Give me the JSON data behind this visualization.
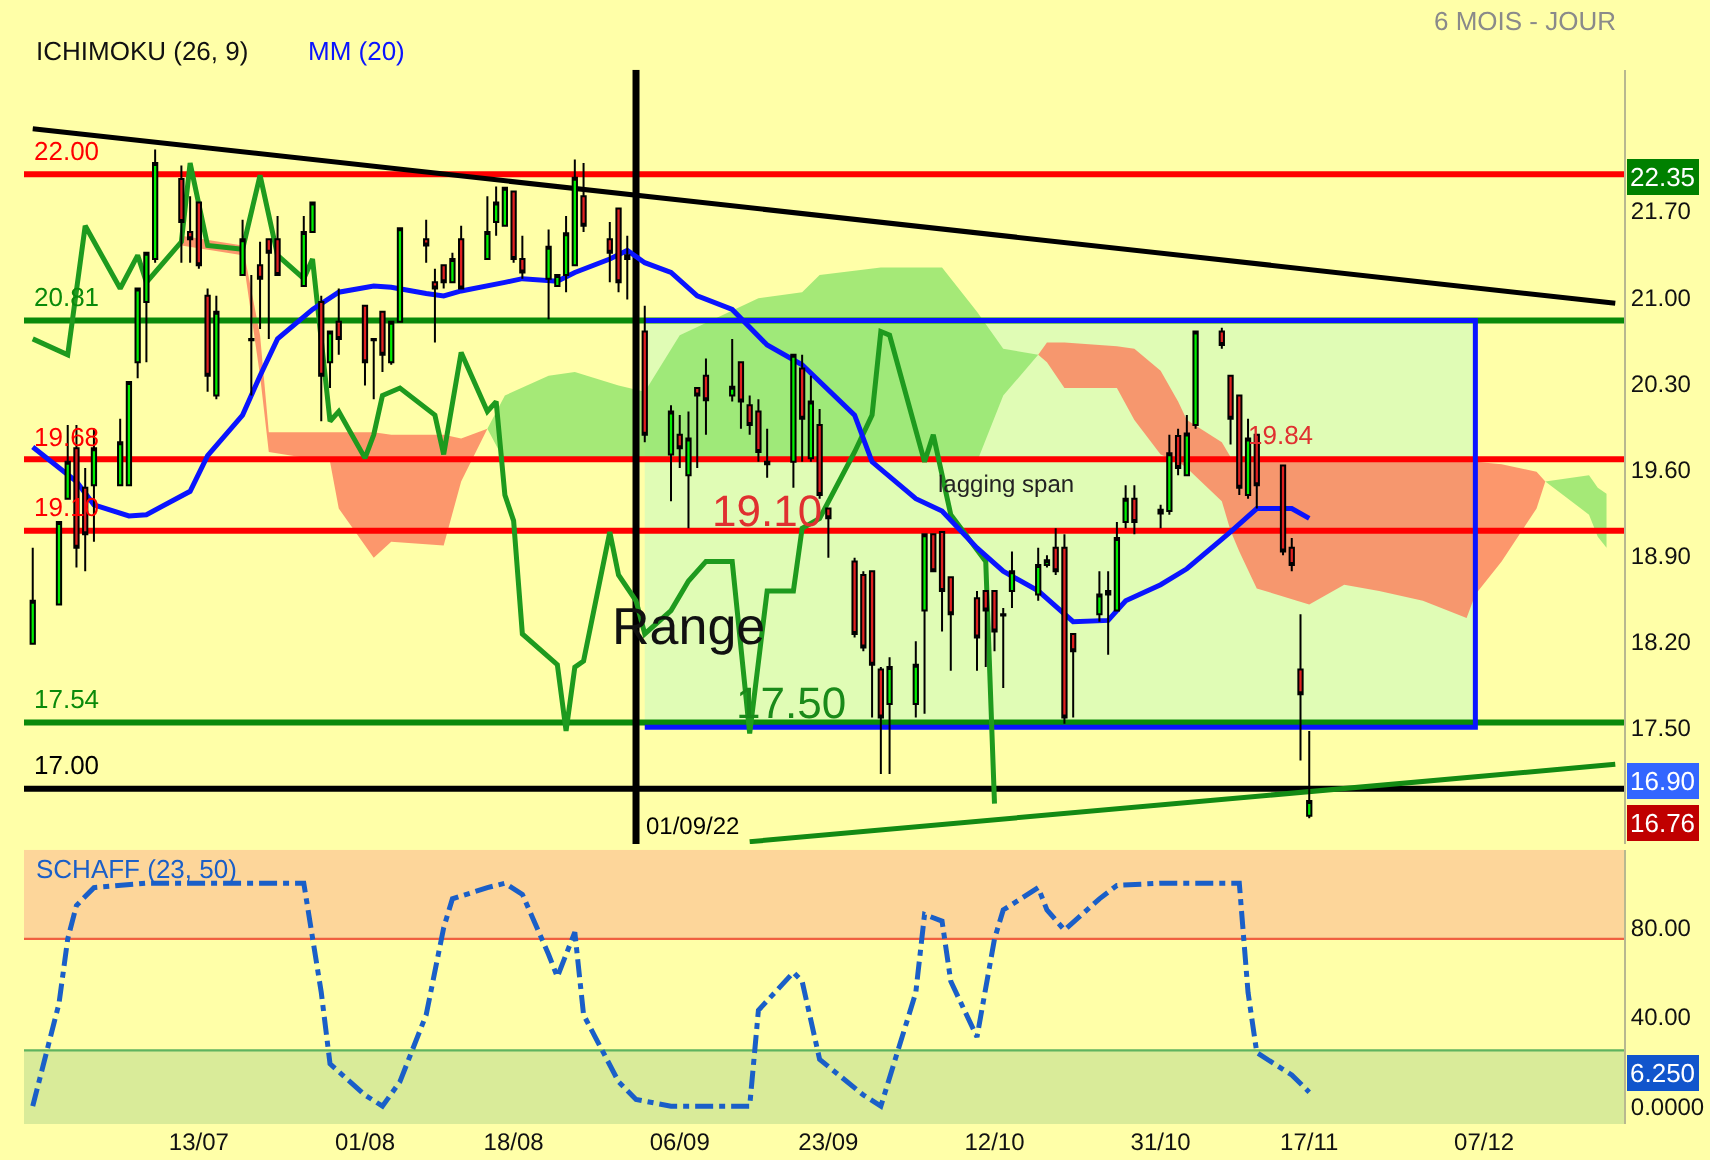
{
  "chart_data": [
    {
      "type": "candlestick",
      "x": [
        "--06-24",
        "--06-27",
        "--06-28",
        "--06-29",
        "--06-30",
        "--07-01",
        "--07-04",
        "--07-05",
        "--07-06",
        "--07-07",
        "--07-08",
        "--07-11",
        "--07-12",
        "--07-13",
        "--07-14",
        "--07-15",
        "--07-18",
        "--07-19",
        "--07-20",
        "--07-21",
        "--07-22",
        "--07-25",
        "--07-26",
        "--07-27",
        "--07-28",
        "--07-29",
        "--08-01",
        "--08-02",
        "--08-03",
        "--08-04",
        "--08-05",
        "--08-08",
        "--08-09",
        "--08-10",
        "--08-11",
        "--08-12",
        "--08-15",
        "--08-16",
        "--08-17",
        "--08-18",
        "--08-19",
        "--08-22",
        "--08-23",
        "--08-24",
        "--08-25",
        "--08-26",
        "--08-29",
        "--08-30",
        "--08-31",
        "--09-02",
        "--09-05",
        "--09-06",
        "--09-07",
        "--09-08",
        "--09-09",
        "--09-12",
        "--09-13",
        "--09-14",
        "--09-15",
        "--09-16",
        "--09-19",
        "--09-20",
        "--09-21",
        "--09-22",
        "--09-23",
        "--09-26",
        "--09-27",
        "--09-28",
        "--09-29",
        "--09-30",
        "--10-03",
        "--10-04",
        "--10-05",
        "--10-06",
        "--10-07",
        "--10-10",
        "--10-11",
        "--10-12",
        "--10-13",
        "--10-14",
        "--10-17",
        "--10-18",
        "--10-19",
        "--10-20",
        "--10-21",
        "--10-24",
        "--10-25",
        "--10-26",
        "--10-27",
        "--10-28",
        "--10-31",
        "--11-01",
        "--11-02",
        "--11-03",
        "--11-04",
        "--11-07",
        "--11-08",
        "--11-09",
        "--11-10",
        "--11-11",
        "--11-14",
        "--11-15",
        "--11-16",
        "--11-17"
      ],
      "ohlc": [
        [
          18.18,
          18.96,
          18.18,
          18.53
        ],
        [
          18.5,
          19.17,
          18.5,
          19.17
        ],
        [
          19.36,
          19.96,
          19.36,
          19.66
        ],
        [
          19.77,
          19.96,
          18.8,
          18.96
        ],
        [
          19.45,
          19.61,
          18.77,
          19.07
        ],
        [
          19.47,
          19.93,
          19.01,
          19.77
        ],
        [
          19.47,
          20.01,
          19.47,
          19.82
        ],
        [
          19.47,
          20.31,
          19.47,
          20.31
        ],
        [
          20.47,
          21.07,
          20.34,
          21.07
        ],
        [
          20.96,
          21.36,
          20.47,
          21.36
        ],
        [
          21.31,
          22.2,
          21.28,
          22.09
        ],
        [
          21.96,
          22.07,
          21.28,
          21.61
        ],
        [
          21.53,
          21.82,
          21.28,
          21.47
        ],
        [
          21.77,
          21.77,
          21.23,
          21.26
        ],
        [
          21.01,
          21.07,
          20.23,
          20.36
        ],
        [
          20.2,
          21.01,
          20.17,
          20.88
        ],
        [
          21.18,
          21.63,
          21.18,
          21.47
        ],
        [
          20.66,
          21.18,
          20.2,
          20.65
        ],
        [
          21.26,
          21.45,
          20.74,
          21.15
        ],
        [
          21.47,
          21.47,
          20.66,
          21.36
        ],
        [
          21.47,
          21.66,
          21.18,
          21.18
        ],
        [
          21.09,
          21.66,
          21.09,
          21.53
        ],
        [
          21.53,
          21.77,
          21.53,
          21.77
        ],
        [
          20.96,
          21.01,
          19.99,
          20.36
        ],
        [
          20.47,
          20.72,
          20.26,
          20.72
        ],
        [
          20.8,
          21.07,
          20.53,
          20.66
        ],
        [
          20.93,
          20.93,
          20.28,
          20.47
        ],
        [
          20.66,
          20.66,
          20.17,
          20.65
        ],
        [
          20.88,
          20.88,
          20.39,
          20.53
        ],
        [
          20.47,
          20.8,
          20.45,
          20.8
        ],
        [
          20.8,
          21.56,
          20.8,
          21.56
        ],
        [
          21.47,
          21.63,
          21.28,
          21.42
        ],
        [
          21.12,
          21.23,
          20.63,
          21.07
        ],
        [
          21.26,
          21.26,
          21.07,
          21.12
        ],
        [
          21.12,
          21.36,
          21.12,
          21.31
        ],
        [
          21.47,
          21.58,
          21.07,
          21.07
        ],
        [
          21.31,
          21.82,
          21.31,
          21.53
        ],
        [
          21.61,
          21.9,
          21.5,
          21.77
        ],
        [
          21.58,
          21.89,
          21.58,
          21.89
        ],
        [
          21.86,
          21.86,
          21.28,
          21.31
        ],
        [
          21.31,
          21.5,
          21.15,
          21.2
        ],
        [
          21.15,
          21.55,
          20.82,
          21.41
        ],
        [
          21.09,
          21.18,
          21.09,
          21.18
        ],
        [
          21.18,
          21.66,
          21.04,
          21.52
        ],
        [
          21.26,
          22.12,
          21.26,
          21.97
        ],
        [
          21.82,
          22.09,
          21.53,
          21.58
        ],
        [
          21.47,
          21.61,
          21.12,
          21.36
        ],
        [
          21.72,
          21.72,
          21.04,
          21.12
        ],
        [
          21.34,
          21.5,
          20.98,
          21.31
        ],
        [
          20.72,
          20.93,
          19.82,
          19.88
        ],
        [
          19.72,
          20.12,
          19.34,
          20.07
        ],
        [
          19.88,
          20.04,
          19.61,
          19.77
        ],
        [
          19.55,
          20.07,
          19.12,
          19.85
        ],
        [
          20.26,
          20.26,
          19.61,
          20.2
        ],
        [
          20.36,
          20.5,
          19.88,
          20.16
        ],
        [
          20.2,
          20.66,
          20.15,
          20.27
        ],
        [
          20.47,
          20.47,
          19.93,
          20.15
        ],
        [
          20.12,
          20.2,
          19.88,
          19.96
        ],
        [
          20.07,
          20.17,
          19.66,
          19.74
        ],
        [
          19.66,
          19.93,
          19.53,
          19.64
        ],
        [
          19.66,
          20.53,
          19.45,
          20.53
        ],
        [
          20.42,
          20.53,
          19.66,
          20.01
        ],
        [
          19.69,
          20.36,
          19.66,
          20.15
        ],
        [
          19.96,
          20.09,
          19.36,
          19.39
        ],
        [
          19.28,
          19.28,
          18.88,
          19.2
        ],
        [
          18.85,
          18.88,
          18.23,
          18.26
        ],
        [
          18.74,
          18.77,
          18.12,
          18.15
        ],
        [
          18.77,
          18.77,
          17.58,
          18.01
        ],
        [
          17.97,
          17.99,
          17.12,
          17.58
        ],
        [
          17.69,
          18.07,
          17.12,
          17.99
        ],
        [
          17.69,
          18.2,
          17.58,
          18.01
        ],
        [
          18.45,
          19.07,
          17.61,
          19.07
        ],
        [
          19.07,
          19.07,
          18.77,
          18.77
        ],
        [
          19.09,
          19.09,
          18.28,
          18.61
        ],
        [
          18.72,
          18.72,
          17.96,
          18.42
        ],
        [
          18.55,
          18.61,
          17.96,
          18.23
        ],
        [
          18.61,
          18.61,
          17.99,
          18.45
        ],
        [
          18.61,
          18.61,
          18.12,
          18.28
        ],
        [
          18.42,
          18.47,
          17.82,
          18.41
        ],
        [
          18.61,
          18.93,
          18.47,
          18.77
        ],
        [
          18.58,
          18.96,
          18.53,
          18.82
        ],
        [
          18.82,
          18.9,
          18.8,
          18.86
        ],
        [
          18.96,
          19.12,
          18.74,
          18.77
        ],
        [
          18.96,
          19.07,
          17.53,
          17.58
        ],
        [
          18.26,
          18.26,
          17.58,
          18.12
        ],
        [
          18.42,
          18.77,
          18.36,
          18.58
        ],
        [
          18.61,
          18.77,
          18.09,
          18.58
        ],
        [
          18.45,
          19.17,
          18.45,
          19.04
        ],
        [
          19.17,
          19.47,
          19.12,
          19.36
        ],
        [
          19.36,
          19.47,
          19.07,
          19.17
        ],
        [
          19.27,
          19.31,
          19.12,
          19.24
        ],
        [
          19.26,
          19.88,
          19.23,
          19.73
        ],
        [
          19.87,
          19.93,
          19.55,
          19.61
        ],
        [
          19.55,
          20.04,
          19.55,
          19.89
        ],
        [
          19.96,
          20.72,
          19.93,
          20.72
        ],
        [
          20.72,
          20.75,
          20.58,
          20.61
        ],
        [
          20.36,
          20.36,
          19.8,
          20.01
        ],
        [
          20.2,
          20.2,
          19.39,
          19.45
        ],
        [
          19.39,
          20.01,
          19.36,
          19.85
        ],
        [
          19.88,
          19.88,
          19.28,
          19.47
        ],
        [
          19.63,
          19.63,
          18.9,
          18.93
        ],
        [
          18.96,
          19.04,
          18.77,
          18.82
        ],
        [
          17.97,
          18.42,
          17.23,
          17.77
        ],
        [
          16.78,
          17.47,
          16.76,
          16.9
        ]
      ],
      "series": [
        {
          "type": "line",
          "color": "#d8fbb8",
          "x": [
            "--09-02",
            "--12-06"
          ],
          "values": [
            null,
            null
          ],
          "lower": [
            17.5,
            17.5
          ],
          "upper": [
            20.81,
            20.81
          ]
        },
        {
          "type": "line",
          "color": "#0a14ff",
          "x": [
            "--09-02",
            "--12-06",
            "--12-06",
            "--09-02"
          ],
          "values": [
            20.81,
            20.81,
            17.5,
            17.5
          ]
        },
        {
          "type": "line",
          "color": "#fb7d5c",
          "x": [
            "--07-11",
            "--07-18",
            "--07-20",
            "--07-21",
            "--07-28",
            "--07-29",
            "--08-02",
            "--08-04",
            "--08-10",
            "--08-12",
            "--08-15"
          ],
          "values": [
            null,
            null,
            null,
            null,
            null,
            null,
            null,
            null,
            null,
            null,
            null
          ],
          "upper": [
            21.5,
            21.42,
            20.69,
            19.9,
            19.9,
            19.9,
            19.9,
            19.88,
            19.88,
            19.85,
            19.93
          ],
          "lower": [
            21.42,
            21.34,
            20.36,
            19.74,
            19.66,
            19.28,
            18.88,
            19.01,
            18.98,
            19.5,
            19.93
          ]
        },
        {
          "type": "line",
          "color": "#8ee36a",
          "x": [
            "--08-15",
            "--08-17",
            "--08-22",
            "--08-25",
            "--08-30",
            "--09-02",
            "--09-06",
            "--09-15",
            "--09-20",
            "--09-22",
            "--09-29",
            "--10-06",
            "--10-10",
            "--10-13",
            "--10-17"
          ],
          "values": [
            null,
            null,
            null,
            null,
            null,
            null,
            null,
            null,
            null,
            null,
            null,
            null,
            null,
            null,
            null
          ],
          "upper": [
            19.93,
            20.2,
            20.36,
            20.39,
            20.28,
            20.23,
            20.69,
            20.99,
            21.04,
            21.18,
            21.24,
            21.24,
            20.88,
            20.58,
            20.53
          ],
          "lower": [
            19.93,
            19.66,
            19.66,
            19.66,
            19.66,
            19.66,
            19.66,
            19.66,
            19.66,
            19.66,
            19.66,
            19.66,
            19.66,
            20.2,
            20.53
          ]
        },
        {
          "type": "line",
          "color": "#fb7d5c",
          "x": [
            "--10-17",
            "--10-18",
            "--10-20",
            "--10-26",
            "--10-28",
            "--10-31",
            "--11-02",
            "--11-03",
            "--11-07",
            "--11-08",
            "--11-09",
            "--11-11",
            "--11-17",
            "--11-21",
            "--11-25",
            "--11-30",
            "--12-05",
            "--12-06",
            "--12-09",
            "--12-13",
            "--12-14"
          ],
          "values": [
            null,
            null,
            null,
            null,
            null,
            null,
            null,
            null,
            null,
            null,
            null,
            null,
            null,
            null,
            null,
            null,
            null,
            null,
            null,
            null,
            null
          ],
          "upper": [
            20.53,
            20.63,
            20.63,
            20.6,
            20.58,
            20.4,
            20.15,
            20.0,
            19.82,
            19.7,
            19.66,
            19.66,
            19.66,
            19.66,
            19.66,
            19.66,
            19.66,
            19.66,
            19.64,
            19.58,
            19.5
          ],
          "lower": [
            20.53,
            20.47,
            20.26,
            20.26,
            20.0,
            19.72,
            19.66,
            19.61,
            19.34,
            19.1,
            18.93,
            18.63,
            18.5,
            18.66,
            18.61,
            18.53,
            18.39,
            18.58,
            18.85,
            19.28,
            19.5
          ]
        },
        {
          "type": "line",
          "color": "#8ee36a",
          "x": [
            "--12-14",
            "--12-19",
            "--12-20",
            "--12-21"
          ],
          "values": [
            null,
            null,
            null,
            null
          ],
          "upper": [
            19.5,
            19.55,
            19.45,
            19.4
          ],
          "lower": [
            19.5,
            19.23,
            19.05,
            18.96
          ]
        },
        {
          "type": "line",
          "color": "#1e9a1e",
          "x": [
            "--06-24",
            "--06-28",
            "--06-30",
            "--07-04",
            "--07-06",
            "--07-07",
            "--07-11",
            "--07-12",
            "--07-14",
            "--07-18",
            "--07-20",
            "--07-22",
            "--07-25",
            "--07-26",
            "--07-28",
            "--07-29",
            "--08-01",
            "--08-02",
            "--08-03",
            "--08-05",
            "--08-09",
            "--08-10",
            "--08-12",
            "--08-15",
            "--08-16",
            "--08-17",
            "--08-18",
            "--08-19",
            "--08-23",
            "--08-24",
            "--08-25",
            "--08-26",
            "--08-29",
            "--08-30",
            "--09-01",
            "--09-02",
            "--09-05",
            "--09-07",
            "--09-09",
            "--09-12",
            "--09-14",
            "--09-16",
            "--09-19",
            "--09-20",
            "--09-22",
            "--09-26",
            "--09-28",
            "--09-29",
            "--09-30",
            "--10-04",
            "--10-05",
            "--10-07",
            "--10-11",
            "--10-12"
          ],
          "values": [
            20.66,
            20.53,
            21.58,
            21.07,
            21.34,
            21.12,
            21.45,
            22.09,
            21.42,
            21.39,
            21.99,
            21.34,
            21.15,
            21.31,
            19.99,
            20.07,
            19.69,
            19.88,
            20.2,
            20.26,
            20.04,
            19.72,
            20.55,
            20.07,
            20.15,
            19.39,
            19.18,
            18.26,
            18.01,
            17.47,
            17.99,
            18.04,
            19.09,
            18.74,
            18.53,
            18.26,
            18.45,
            18.69,
            18.85,
            18.85,
            17.45,
            18.61,
            18.61,
            19.12,
            19.2,
            19.74,
            20.04,
            20.72,
            20.69,
            19.66,
            19.88,
            19.23,
            18.85,
            16.88
          ]
        },
        {
          "type": "line",
          "name": "MM (20)",
          "color": "#0a14ff",
          "x": [
            "--06-24",
            "--06-29",
            "--07-01",
            "--07-05",
            "--07-07",
            "--07-12",
            "--07-14",
            "--07-18",
            "--07-20",
            "--07-22",
            "--07-26",
            "--07-29",
            "--08-02",
            "--08-04",
            "--08-08",
            "--08-10",
            "--08-12",
            "--08-17",
            "--08-19",
            "--08-23",
            "--08-25",
            "--08-29",
            "--08-31",
            "--09-02",
            "--09-05",
            "--09-08",
            "--09-12",
            "--09-16",
            "--09-20",
            "--09-26",
            "--09-28",
            "--10-03",
            "--10-06",
            "--10-10",
            "--10-13",
            "--10-17",
            "--10-21",
            "--10-25",
            "--10-27",
            "--10-31",
            "--11-03",
            "--11-08",
            "--11-11",
            "--11-15",
            "--11-17"
          ],
          "values": [
            19.78,
            19.5,
            19.31,
            19.22,
            19.23,
            19.42,
            19.71,
            20.04,
            20.36,
            20.66,
            20.9,
            21.04,
            21.09,
            21.08,
            21.03,
            21.01,
            21.05,
            21.12,
            21.15,
            21.13,
            21.2,
            21.31,
            21.38,
            21.28,
            21.2,
            21.01,
            20.9,
            20.61,
            20.45,
            20.04,
            19.66,
            19.36,
            19.26,
            18.96,
            18.77,
            18.61,
            18.36,
            18.37,
            18.53,
            18.66,
            18.79,
            19.09,
            19.28,
            19.28,
            19.2
          ]
        },
        {
          "type": "line",
          "color": "#000000",
          "x": [
            "--06-24",
            "--12-22"
          ],
          "values": [
            22.37,
            20.95
          ]
        },
        {
          "type": "line",
          "color": "#138a13",
          "x": [
            "--09-14",
            "--12-22"
          ],
          "values": [
            16.57,
            17.2
          ]
        }
      ],
      "xlim": [
        "--06-23",
        "--12-23"
      ],
      "xticks": [
        {
          "value": "--07-13",
          "label": "13/07"
        },
        {
          "value": "--08-01",
          "label": "01/08"
        },
        {
          "value": "--08-18",
          "label": "18/08"
        },
        {
          "value": "--09-06",
          "label": "06/09"
        },
        {
          "value": "--09-23",
          "label": "23/09"
        },
        {
          "value": "--10-12",
          "label": "12/10"
        },
        {
          "value": "--10-31",
          "label": "31/10"
        },
        {
          "value": "--11-17",
          "label": "17/11"
        },
        {
          "value": "--12-07",
          "label": "07/12"
        }
      ],
      "ylim": [
        16.55,
        22.85
      ],
      "yticks": [
        {
          "value": 17.5,
          "label": "17.50"
        },
        {
          "value": 18.2,
          "label": "18.20"
        },
        {
          "value": 18.9,
          "label": "18.90"
        },
        {
          "value": 19.6,
          "label": "19.60"
        },
        {
          "value": 20.3,
          "label": "20.30"
        },
        {
          "value": 21.0,
          "label": "21.00"
        },
        {
          "value": 21.7,
          "label": "21.70"
        }
      ],
      "tick_labels": "y",
      "ref_lines": [
        {
          "axis": "y",
          "value": 22.0,
          "label": "22.00",
          "color": "#ff0000"
        },
        {
          "axis": "y",
          "value": 20.81,
          "label": "20.81",
          "color": "#0a8a0a"
        },
        {
          "axis": "y",
          "value": 19.68,
          "label": "19.68",
          "color": "#ff0000"
        },
        {
          "axis": "y",
          "value": 19.1,
          "label": "19.10",
          "color": "#ff0000"
        },
        {
          "axis": "y",
          "value": 17.54,
          "label": "17.54",
          "color": "#0a8a0a"
        },
        {
          "axis": "y",
          "value": 17.0,
          "label": "17.00",
          "color": "#000000"
        },
        {
          "axis": "x",
          "value": "--09-01",
          "label": "01/09/22",
          "color": "#000000"
        }
      ],
      "annotations": [
        "ICHIMOKU (26, 9)",
        "6 MOIS - JOUR",
        "Range",
        "lagging span",
        "19.84",
        "22.35",
        "16.90",
        "16.76",
        "19.10",
        "17.50"
      ]
    },
    {
      "type": "line",
      "x": [
        "--06-24",
        "--06-27",
        "--06-28",
        "--06-29",
        "--07-01",
        "--07-07",
        "--07-25",
        "--07-27",
        "--07-28",
        "--08-01",
        "--08-03",
        "--08-05",
        "--08-08",
        "--08-10",
        "--08-11",
        "--08-15",
        "--08-17",
        "--08-19",
        "--08-22",
        "--08-23",
        "--08-25",
        "--08-26",
        "--08-30",
        "--09-01",
        "--09-05",
        "--09-14",
        "--09-15",
        "--09-19",
        "--09-20",
        "--09-22",
        "--09-27",
        "--09-29",
        "--10-03",
        "--10-04",
        "--10-06",
        "--10-07",
        "--10-10",
        "--10-12",
        "--10-13",
        "--10-17",
        "--10-18",
        "--10-20",
        "--10-24",
        "--10-26",
        "--10-31",
        "--11-09",
        "--11-10",
        "--11-11",
        "--11-15",
        "--11-17"
      ],
      "series": [
        {
          "name": "SCHAFF (23, 50)",
          "color": "#1a5fc8",
          "line_style": "dashed",
          "values": [
            0,
            46,
            75,
            90,
            98,
            100,
            100,
            51,
            19,
            5,
            0,
            11,
            41,
            80,
            93,
            98,
            100,
            95,
            68,
            58,
            78,
            41,
            11,
            3,
            0,
            0,
            43,
            60,
            56,
            21,
            5,
            0,
            51,
            86,
            83,
            56,
            31,
            75,
            88,
            98,
            88,
            79,
            93,
            99,
            100,
            100,
            51,
            24,
            14,
            6.25
          ]
        }
      ],
      "xlim": [
        "--06-23",
        "--12-23"
      ],
      "xticks": [
        {
          "value": "--07-13",
          "label": "13/07"
        },
        {
          "value": "--08-01",
          "label": "01/08"
        },
        {
          "value": "--08-18",
          "label": "18/08"
        },
        {
          "value": "--09-06",
          "label": "06/09"
        },
        {
          "value": "--09-23",
          "label": "23/09"
        },
        {
          "value": "--10-12",
          "label": "12/10"
        },
        {
          "value": "--10-31",
          "label": "31/10"
        },
        {
          "value": "--11-17",
          "label": "17/11"
        },
        {
          "value": "--12-07",
          "label": "07/12"
        }
      ],
      "ylim": [
        -8,
        115
      ],
      "yticks": [
        {
          "value": 0,
          "label": "0.0000"
        },
        {
          "value": 40,
          "label": "40.00"
        },
        {
          "value": 80,
          "label": "80.00"
        }
      ],
      "bands": [
        {
          "axis": "y",
          "from": 75,
          "to": 115,
          "color": "#fdd69a"
        },
        {
          "axis": "y",
          "from": -8,
          "to": 25,
          "color": "#d9eb99"
        }
      ],
      "ref_lines": [
        {
          "axis": "y",
          "value": 75,
          "color": "#f06040"
        },
        {
          "axis": "y",
          "value": 25,
          "color": "#5fb35f"
        }
      ],
      "annotations": [
        "6.250"
      ]
    }
  ]
}
